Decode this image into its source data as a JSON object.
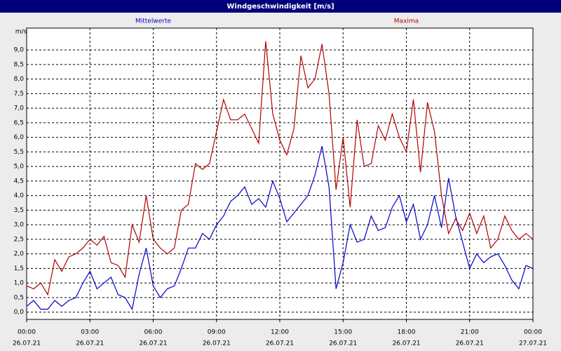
{
  "chart_data": {
    "type": "line",
    "title": "Windgeschwindigkeit [m/s]",
    "y_label": "m/s",
    "x": [
      0,
      20,
      40,
      60,
      80,
      100,
      120,
      140,
      160,
      180,
      200,
      220,
      240,
      260,
      280,
      300,
      320,
      340,
      360,
      380,
      400,
      420,
      440,
      460,
      480,
      500,
      520,
      540,
      560,
      580,
      600,
      620,
      640,
      660,
      680,
      700,
      720,
      740,
      760,
      780,
      800,
      820,
      840,
      860,
      880,
      900,
      920,
      940,
      960,
      980,
      1000,
      1020,
      1040,
      1060,
      1080,
      1100,
      1120,
      1140,
      1160,
      1180,
      1200,
      1220,
      1240,
      1260,
      1280,
      1300,
      1320,
      1340,
      1360,
      1380,
      1400,
      1420,
      1440
    ],
    "xlim": [
      0,
      1440
    ],
    "xticks": [
      {
        "value": 0,
        "label": "00:00"
      },
      {
        "value": 180,
        "label": "03:00"
      },
      {
        "value": 360,
        "label": "06:00"
      },
      {
        "value": 540,
        "label": "09:00"
      },
      {
        "value": 720,
        "label": "12:00"
      },
      {
        "value": 900,
        "label": "15:00"
      },
      {
        "value": 1080,
        "label": "18:00"
      },
      {
        "value": 1260,
        "label": "21:00"
      },
      {
        "value": 1440,
        "label": "00:00"
      }
    ],
    "xtick_dates": [
      "26.07.21",
      "26.07.21",
      "26.07.21",
      "26.07.21",
      "26.07.21",
      "26.07.21",
      "26.07.21",
      "26.07.21",
      "27.07.21"
    ],
    "ylim": [
      -0.25,
      9.75
    ],
    "yticks": [
      {
        "value": 0,
        "label": "0,0"
      },
      {
        "value": 0.5,
        "label": "0,5"
      },
      {
        "value": 1,
        "label": "1,0"
      },
      {
        "value": 1.5,
        "label": "1,5"
      },
      {
        "value": 2,
        "label": "2,0"
      },
      {
        "value": 2.5,
        "label": "2,5"
      },
      {
        "value": 3,
        "label": "3,0"
      },
      {
        "value": 3.5,
        "label": "3,5"
      },
      {
        "value": 4,
        "label": "4,0"
      },
      {
        "value": 4.5,
        "label": "4,5"
      },
      {
        "value": 5,
        "label": "5,0"
      },
      {
        "value": 5.5,
        "label": "5,5"
      },
      {
        "value": 6,
        "label": "6,0"
      },
      {
        "value": 6.5,
        "label": "6,5"
      },
      {
        "value": 7,
        "label": "7,0"
      },
      {
        "value": 7.5,
        "label": "7,5"
      },
      {
        "value": 8,
        "label": "8,0"
      },
      {
        "value": 8.5,
        "label": "8,5"
      },
      {
        "value": 9,
        "label": "9,0"
      }
    ],
    "grid": true,
    "series": [
      {
        "name": "Mittelwerte",
        "color": "#0000c8",
        "values": [
          0.2,
          0.4,
          0.1,
          0.1,
          0.4,
          0.2,
          0.4,
          0.5,
          1.0,
          1.4,
          0.8,
          1.0,
          1.2,
          0.6,
          0.5,
          0.1,
          1.3,
          2.2,
          0.9,
          0.5,
          0.8,
          0.9,
          1.5,
          2.2,
          2.2,
          2.7,
          2.5,
          3.0,
          3.3,
          3.8,
          4.0,
          4.3,
          3.7,
          3.9,
          3.6,
          4.5,
          3.9,
          3.1,
          3.4,
          3.7,
          4.0,
          4.7,
          5.7,
          4.3,
          0.8,
          1.7,
          3.0,
          2.4,
          2.5,
          3.3,
          2.8,
          2.9,
          3.6,
          4.0,
          3.1,
          3.7,
          2.5,
          3.0,
          4.0,
          2.9,
          4.6,
          3.3,
          2.4,
          1.5,
          2.0,
          1.7,
          1.9,
          2.0,
          1.6,
          1.1,
          0.8,
          1.6,
          1.5
        ]
      },
      {
        "name": "Maxima",
        "color": "#b40000",
        "values": [
          0.9,
          0.8,
          1.0,
          0.6,
          1.8,
          1.4,
          1.9,
          2.0,
          2.2,
          2.5,
          2.3,
          2.6,
          1.7,
          1.6,
          1.2,
          3.0,
          2.4,
          4.0,
          2.5,
          2.2,
          2.0,
          2.2,
          3.5,
          3.7,
          5.1,
          4.9,
          5.1,
          6.2,
          7.3,
          6.6,
          6.6,
          6.8,
          6.3,
          5.8,
          9.3,
          6.8,
          5.9,
          5.4,
          6.3,
          8.8,
          7.7,
          8.0,
          9.2,
          7.5,
          4.2,
          6.0,
          3.6,
          6.6,
          5.0,
          5.1,
          6.4,
          5.9,
          6.8,
          6.0,
          5.5,
          7.3,
          4.8,
          7.2,
          6.2,
          4.0,
          2.7,
          3.2,
          2.8,
          3.4,
          2.7,
          3.3,
          2.2,
          2.5,
          3.3,
          2.8,
          2.5,
          2.7,
          2.5
        ]
      }
    ]
  }
}
